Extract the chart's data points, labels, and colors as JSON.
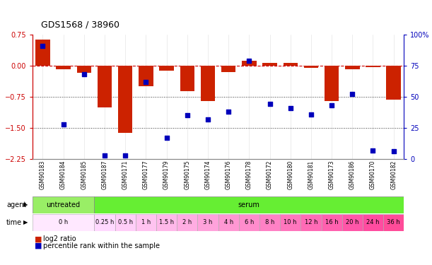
{
  "title": "GDS1568 / 38960",
  "samples": [
    "GSM90183",
    "GSM90184",
    "GSM90185",
    "GSM90187",
    "GSM90171",
    "GSM90177",
    "GSM90179",
    "GSM90175",
    "GSM90174",
    "GSM90176",
    "GSM90178",
    "GSM90172",
    "GSM90180",
    "GSM90181",
    "GSM90173",
    "GSM90186",
    "GSM90170",
    "GSM90182"
  ],
  "log2_ratio": [
    0.62,
    -0.08,
    -0.18,
    -1.0,
    -1.62,
    -0.5,
    -0.12,
    -0.62,
    -0.85,
    -0.15,
    0.12,
    0.06,
    0.06,
    -0.06,
    -0.85,
    -0.08,
    -0.04,
    -0.82
  ],
  "percentile_rank": [
    91,
    28,
    68,
    3,
    3,
    62,
    17,
    35,
    32,
    38,
    79,
    44,
    41,
    36,
    43,
    52,
    7,
    6
  ],
  "bar_color": "#CC2200",
  "dot_color": "#0000BB",
  "ylim_left": [
    -2.25,
    0.75
  ],
  "ylim_right": [
    0,
    100
  ],
  "yticks_left": [
    0.75,
    0.0,
    -0.75,
    -1.5,
    -2.25
  ],
  "yticks_right": [
    100,
    75,
    50,
    25,
    0
  ],
  "hlines": [
    -0.75,
    -1.5
  ],
  "agent_untreated_color": "#99EE66",
  "agent_serum_color": "#66EE33",
  "time_color_0h": "#FFE8FF",
  "time_color_early": "#FFB3EE",
  "time_color_mid": "#FF88DD",
  "time_color_late": "#FF44CC"
}
